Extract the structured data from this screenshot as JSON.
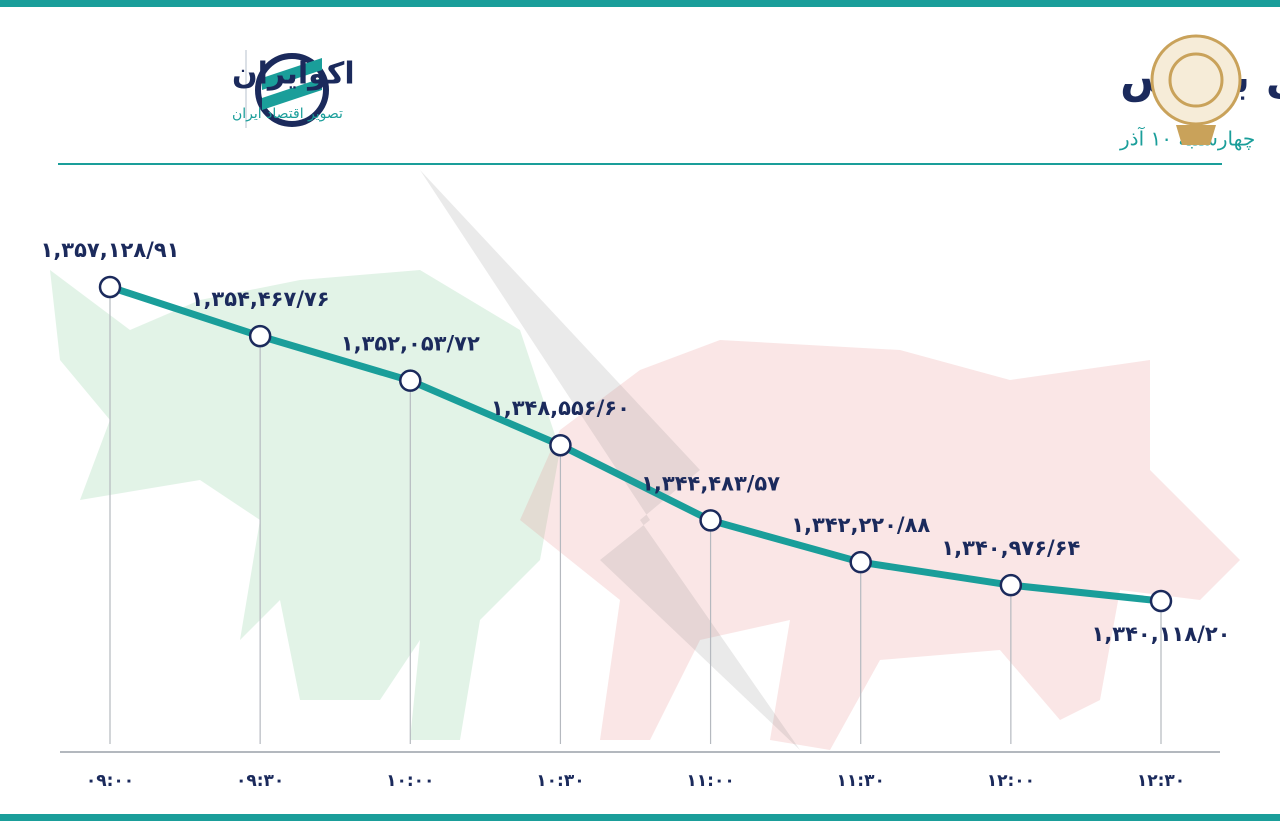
{
  "header": {
    "brand": "اکوایران",
    "tagline": "تصویر اقتصاد ایران"
  },
  "chart_data": {
    "type": "line",
    "title": "روند شاخص کل بورس",
    "subtitle": "چهارشنبه ۱۰ آذر",
    "categories": [
      "۰۹:۰۰",
      "۰۹:۳۰",
      "۱۰:۰۰",
      "۱۰:۳۰",
      "۱۱:۰۰",
      "۱۱:۳۰",
      "۱۲:۰۰",
      "۱۲:۳۰"
    ],
    "series": [
      {
        "color": "#1a9e9a",
        "values": [
          1357128.91,
          1354467.76,
          1352053.72,
          1348556.6,
          1344483.57,
          1342220.88,
          1340976.64,
          1340118.2
        ],
        "value_labels": [
          "۱,۳۵۷,۱۲۸/۹۱",
          "۱,۳۵۴,۴۶۷/۷۶",
          "۱,۳۵۲,۰۵۳/۷۲",
          "۱,۳۴۸,۵۵۶/۶۰",
          "۱,۳۴۴,۴۸۳/۵۷",
          "۱,۳۴۲,۲۲۰/۸۸",
          "۱,۳۴۰,۹۷۶/۶۴",
          "۱,۳۴۰,۱۱۸/۲۰"
        ]
      }
    ]
  }
}
